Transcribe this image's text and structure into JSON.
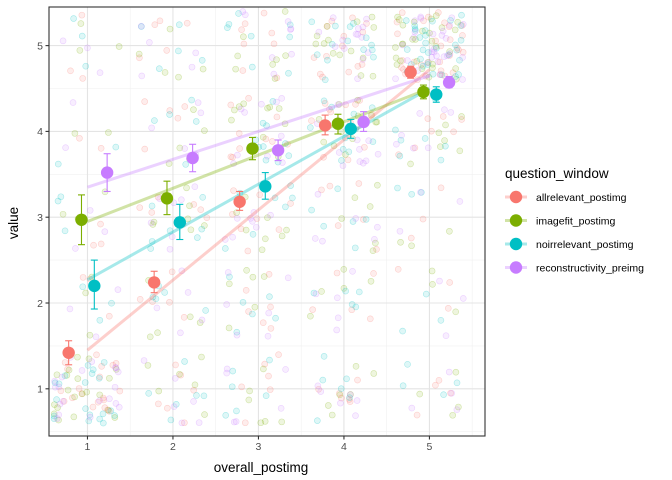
{
  "chart_data": {
    "type": "scatter",
    "title": "",
    "xlabel": "overall_postimg",
    "ylabel": "value",
    "x_ticks": [
      "1",
      "2",
      "3",
      "4",
      "5"
    ],
    "y_ticks": [
      "1",
      "2",
      "3",
      "4",
      "5"
    ],
    "xlim": [
      0.55,
      5.65
    ],
    "ylim": [
      0.45,
      5.45
    ],
    "grid": true,
    "legend": {
      "title": "question_window",
      "position": "right"
    },
    "series": [
      {
        "name": "allrelevant_postimg",
        "color": "#F8766D",
        "points": [
          {
            "x": 0.78,
            "y": 1.42,
            "low": 1.28,
            "high": 1.56
          },
          {
            "x": 1.78,
            "y": 2.24,
            "low": 2.12,
            "high": 2.37
          },
          {
            "x": 2.78,
            "y": 3.18,
            "low": 3.08,
            "high": 3.3
          },
          {
            "x": 3.78,
            "y": 4.07,
            "low": 3.96,
            "high": 4.19
          },
          {
            "x": 4.78,
            "y": 4.69,
            "low": 4.62,
            "high": 4.76
          }
        ],
        "trend": [
          [
            1.0,
            1.45
          ],
          [
            5.0,
            4.72
          ]
        ]
      },
      {
        "name": "imagefit_postimg",
        "color": "#7CAE00",
        "points": [
          {
            "x": 0.93,
            "y": 2.97,
            "low": 2.68,
            "high": 3.26
          },
          {
            "x": 1.93,
            "y": 3.22,
            "low": 3.03,
            "high": 3.42
          },
          {
            "x": 2.93,
            "y": 3.8,
            "low": 3.67,
            "high": 3.93
          },
          {
            "x": 3.93,
            "y": 4.09,
            "low": 3.97,
            "high": 4.2
          },
          {
            "x": 4.93,
            "y": 4.46,
            "low": 4.38,
            "high": 4.54
          }
        ],
        "trend": [
          [
            1.0,
            2.95
          ],
          [
            5.0,
            4.5
          ]
        ]
      },
      {
        "name": "noirrelevant_postimg",
        "color": "#00BFC4",
        "points": [
          {
            "x": 1.08,
            "y": 2.2,
            "low": 1.93,
            "high": 2.5
          },
          {
            "x": 2.08,
            "y": 2.94,
            "low": 2.74,
            "high": 3.15
          },
          {
            "x": 3.08,
            "y": 3.36,
            "low": 3.21,
            "high": 3.52
          },
          {
            "x": 4.08,
            "y": 4.03,
            "low": 3.92,
            "high": 4.14
          },
          {
            "x": 5.08,
            "y": 4.43,
            "low": 4.34,
            "high": 4.52
          }
        ],
        "trend": [
          [
            1.0,
            2.27
          ],
          [
            5.0,
            4.5
          ]
        ]
      },
      {
        "name": "reconstructivity_preimg",
        "color": "#C77CFF",
        "points": [
          {
            "x": 1.23,
            "y": 3.52,
            "low": 3.3,
            "high": 3.74
          },
          {
            "x": 2.23,
            "y": 3.69,
            "low": 3.53,
            "high": 3.85
          },
          {
            "x": 3.23,
            "y": 3.78,
            "low": 3.66,
            "high": 3.9
          },
          {
            "x": 4.23,
            "y": 4.11,
            "low": 4.0,
            "high": 4.23
          },
          {
            "x": 5.23,
            "y": 4.57,
            "low": 4.51,
            "high": 4.64
          }
        ],
        "trend": [
          [
            1.0,
            3.35
          ],
          [
            5.0,
            4.65
          ]
        ]
      }
    ]
  }
}
